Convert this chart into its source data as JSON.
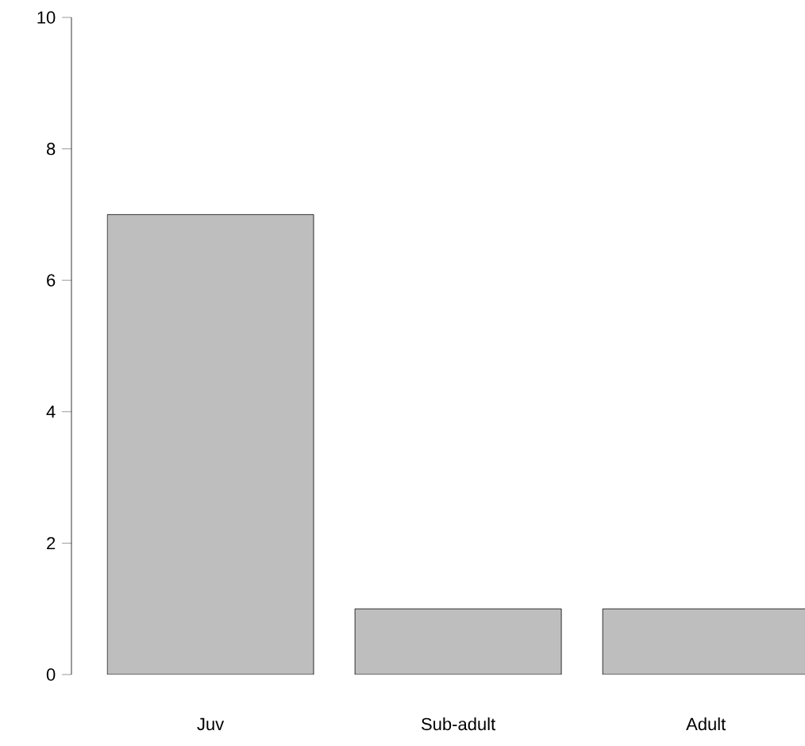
{
  "chart_data": {
    "type": "bar",
    "categories": [
      "Juv",
      "Sub-adult",
      "Adult"
    ],
    "values": [
      7,
      1,
      1
    ],
    "color": "#bebebe",
    "ylim": [
      0,
      10
    ],
    "yticks": [
      0,
      2,
      4,
      6,
      8,
      10
    ]
  }
}
